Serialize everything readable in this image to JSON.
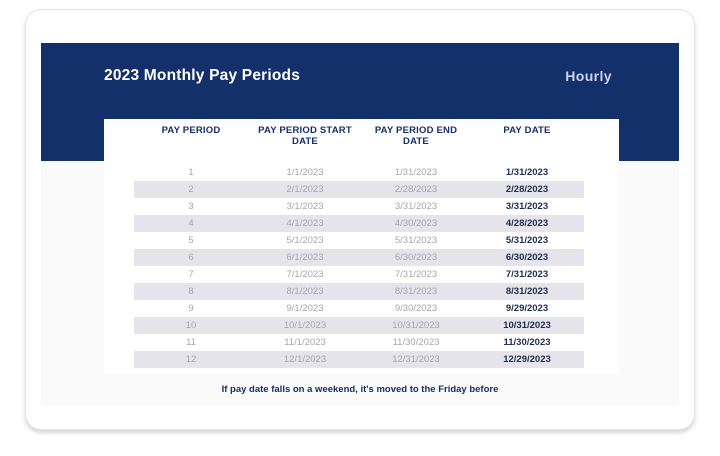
{
  "header": {
    "title": "2023 Monthly Pay Periods",
    "view_label": "Hourly"
  },
  "table": {
    "columns": [
      "PAY PERIOD",
      "PAY PERIOD START DATE",
      "PAY PERIOD END DATE",
      "PAY DATE"
    ],
    "rows": [
      [
        "1",
        "1/1/2023",
        "1/31/2023",
        "1/31/2023"
      ],
      [
        "2",
        "2/1/2023",
        "2/28/2023",
        "2/28/2023"
      ],
      [
        "3",
        "3/1/2023",
        "3/31/2023",
        "3/31/2023"
      ],
      [
        "4",
        "4/1/2023",
        "4/30/2023",
        "4/28/2023"
      ],
      [
        "5",
        "5/1/2023",
        "5/31/2023",
        "5/31/2023"
      ],
      [
        "6",
        "6/1/2023",
        "6/30/2023",
        "6/30/2023"
      ],
      [
        "7",
        "7/1/2023",
        "7/31/2023",
        "7/31/2023"
      ],
      [
        "8",
        "8/1/2023",
        "8/31/2023",
        "8/31/2023"
      ],
      [
        "9",
        "9/1/2023",
        "9/30/2023",
        "9/29/2023"
      ],
      [
        "10",
        "10/1/2023",
        "10/31/2023",
        "10/31/2023"
      ],
      [
        "11",
        "11/1/2023",
        "11/30/2023",
        "11/30/2023"
      ],
      [
        "12",
        "12/1/2023",
        "12/31/2023",
        "12/29/2023"
      ]
    ]
  },
  "footnote": "If pay date falls on a weekend, it's moved to the Friday before",
  "colors": {
    "navy": "#14306a",
    "stripe": "#e4e4ea",
    "muted_text": "#a6a6ae",
    "pay_date_text": "#1e2d50",
    "hourly_text": "#c9d4ee"
  }
}
